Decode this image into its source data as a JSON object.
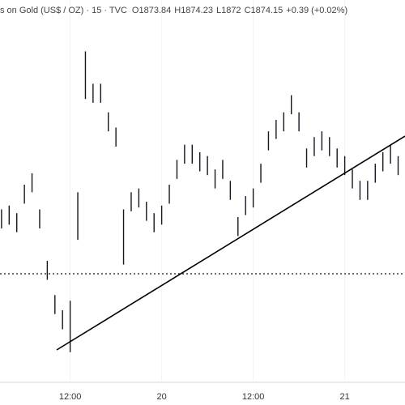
{
  "chart_data": {
    "type": "range-bar",
    "title": "s on Gold (US$ / OZ) · 15 · TVC",
    "legend_values": [
      {
        "label": "O",
        "value": 1873.84
      },
      {
        "label": "H",
        "value": 1874.23
      },
      {
        "label": "L",
        "value": 1872.0
      },
      {
        "label": "C",
        "value": 1874.15
      }
    ],
    "change": "+0.39 (+0.02%)",
    "color": "#131722",
    "x": [
      3,
      4,
      5,
      6,
      7,
      8,
      9,
      10,
      11,
      12,
      13,
      14,
      15,
      16,
      17,
      18,
      19,
      20,
      21,
      22,
      23,
      24,
      25,
      26,
      27,
      28,
      29,
      30,
      31,
      32,
      33,
      34,
      35,
      36,
      37,
      38,
      39,
      40,
      41,
      42,
      43,
      44,
      45,
      46,
      47,
      48,
      49,
      50,
      51,
      52,
      53,
      54,
      55
    ],
    "high": [
      1871.0,
      1871.2,
      1870.8,
      1872.3,
      1872.9,
      1871.0,
      1868.3,
      1866.5,
      1865.7,
      1866.2,
      1871.9,
      1879.3,
      1877.6,
      1877.6,
      1876.1,
      1875.3,
      1871.0,
      1871.9,
      1872.1,
      1871.4,
      1870.8,
      1871.2,
      1872.3,
      1873.6,
      1874.4,
      1874.4,
      1874.0,
      1873.8,
      1873.1,
      1873.6,
      1872.5,
      1870.6,
      1871.7,
      1872.1,
      1873.4,
      1875.1,
      1875.7,
      1876.1,
      1877.0,
      1876.1,
      1874.2,
      1874.8,
      1875.1,
      1874.8,
      1874.2,
      1873.8,
      1873.1,
      1872.5,
      1872.5,
      1873.4,
      1874.0,
      1874.4,
      1873.8
    ],
    "low": [
      1870.0,
      1870.2,
      1869.8,
      1871.3,
      1871.9,
      1870.0,
      1867.3,
      1865.5,
      1864.7,
      1863.5,
      1869.4,
      1876.8,
      1876.6,
      1876.6,
      1875.1,
      1874.3,
      1868.1,
      1870.9,
      1871.1,
      1870.4,
      1869.8,
      1870.2,
      1871.3,
      1872.6,
      1873.4,
      1873.4,
      1873.0,
      1872.8,
      1872.1,
      1872.6,
      1871.5,
      1869.6,
      1870.7,
      1871.1,
      1872.4,
      1874.1,
      1874.7,
      1875.1,
      1876.0,
      1875.1,
      1873.2,
      1873.8,
      1874.1,
      1873.8,
      1873.2,
      1872.8,
      1872.1,
      1871.5,
      1871.5,
      1872.4,
      1873.0,
      1873.4,
      1872.8
    ],
    "xlim": [
      2.8,
      55.9
    ],
    "xticks": [
      {
        "value": 12,
        "label": "12:00"
      },
      {
        "value": 24,
        "label": "20"
      },
      {
        "value": 36,
        "label": "12:00"
      },
      {
        "value": 48,
        "label": "21"
      }
    ],
    "ylim": [
      1862,
      1882
    ],
    "grid": true
  }
}
